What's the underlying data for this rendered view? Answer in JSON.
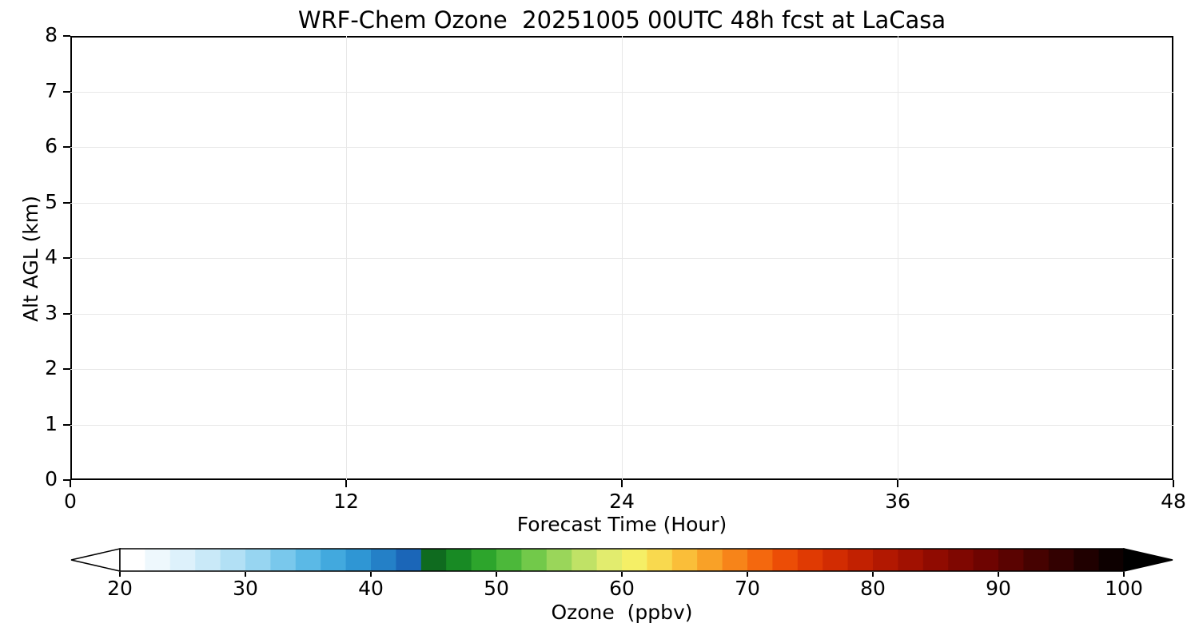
{
  "chart_data": {
    "type": "heatmap",
    "title": "WRF-Chem Ozone  20251005 00UTC 48h fcst at LaCasa",
    "xlabel": "Forecast Time (Hour)",
    "ylabel": "Alt AGL (km)",
    "xlim": [
      0,
      48
    ],
    "ylim": [
      0,
      8
    ],
    "x_ticks": [
      0,
      12,
      24,
      36,
      48
    ],
    "y_ticks": [
      0,
      1,
      2,
      3,
      4,
      5,
      6,
      7,
      8
    ],
    "grid": true,
    "plot_background": "#ffffff",
    "values": [],
    "colorbar": {
      "label": "Ozone  (ppbv)",
      "ticks": [
        20,
        30,
        40,
        50,
        60,
        70,
        80,
        90,
        100
      ],
      "range": [
        20,
        100
      ],
      "extend_under_color": "#ffffff",
      "extend_over_color": "#000000",
      "segment_colors": [
        "#ffffff",
        "#eef8fd",
        "#ddf1fb",
        "#c9e9f8",
        "#b2e0f5",
        "#97d5f1",
        "#79c8ec",
        "#5bb9e6",
        "#42a9de",
        "#2f96d4",
        "#2480c7",
        "#1b66b8",
        "#0f6b1f",
        "#188a24",
        "#2da52c",
        "#4cb83a",
        "#72c94a",
        "#9ad65a",
        "#c0e266",
        "#e2ec6e",
        "#f5ef66",
        "#f9d94e",
        "#fabe39",
        "#f9a127",
        "#f78419",
        "#f4680e",
        "#ec4d06",
        "#e03a03",
        "#d22c02",
        "#c22101",
        "#b21801",
        "#a11101",
        "#900b01",
        "#7f0701",
        "#6e0401",
        "#5a0301",
        "#460201",
        "#330101",
        "#200000",
        "#0d0000"
      ]
    }
  }
}
